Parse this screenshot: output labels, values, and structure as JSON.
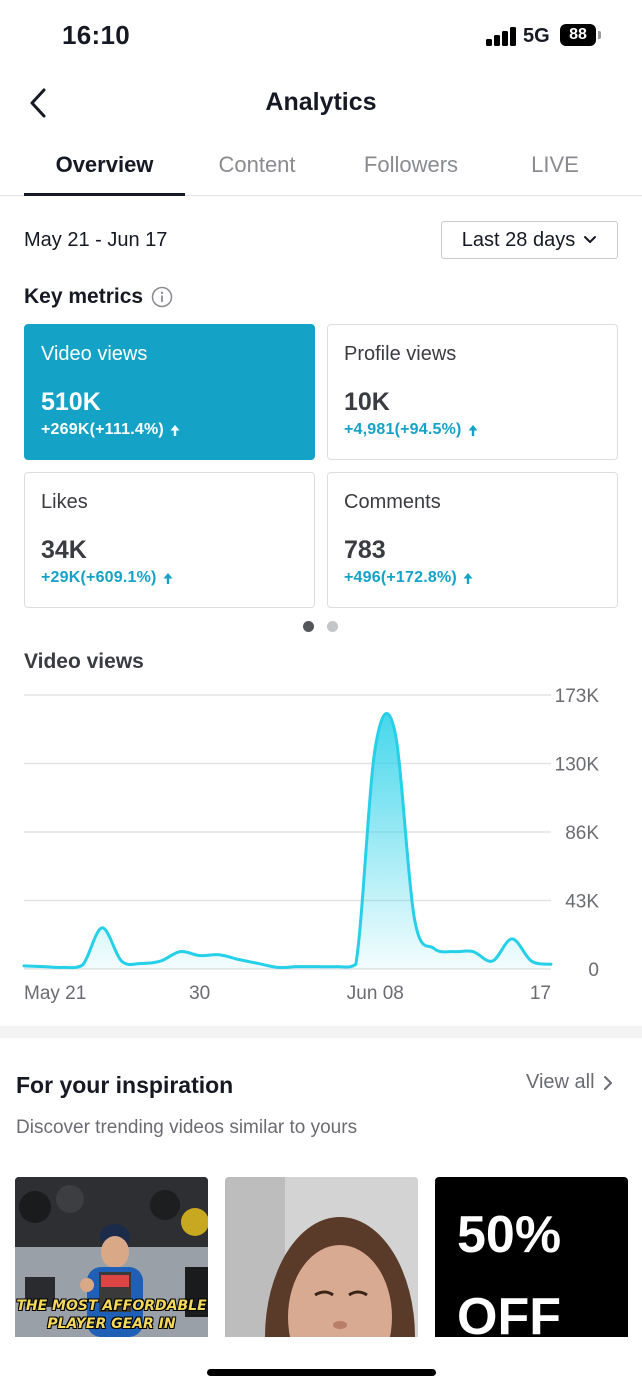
{
  "status_bar": {
    "time": "16:10",
    "network": "5G",
    "battery": "88"
  },
  "header": {
    "title": "Analytics",
    "back_icon": "chevron-left-icon"
  },
  "tabs": [
    {
      "label": "Overview",
      "active": true
    },
    {
      "label": "Content",
      "active": false
    },
    {
      "label": "Followers",
      "active": false
    },
    {
      "label": "LIVE",
      "active": false
    }
  ],
  "date_range": "May 21 - Jun 17",
  "period_select": {
    "value": "Last 28 days",
    "icon": "chevron-down-icon"
  },
  "key_metrics": {
    "title": "Key metrics",
    "info_icon": "info-icon",
    "cards": [
      {
        "label": "Video views",
        "value": "510K",
        "change": "+269K(+111.4%)",
        "selected": true
      },
      {
        "label": "Profile views",
        "value": "10K",
        "change": "+4,981(+94.5%)",
        "selected": false
      },
      {
        "label": "Likes",
        "value": "34K",
        "change": "+29K(+609.1%)",
        "selected": false
      },
      {
        "label": "Comments",
        "value": "783",
        "change": "+496(+172.8%)",
        "selected": false
      }
    ],
    "page_indicator": {
      "pages": 2,
      "current": 1
    }
  },
  "chart_section": {
    "title": "Video views"
  },
  "chart_data": {
    "type": "area",
    "title": "Video views",
    "x_ticks": [
      "May 21",
      "30",
      "Jun 08",
      "17"
    ],
    "y_ticks": [
      "173K",
      "130K",
      "86K",
      "43K",
      "0"
    ],
    "ylim": [
      0,
      173000
    ],
    "grid": true,
    "x": [
      "May 21",
      "May 22",
      "May 23",
      "May 24",
      "May 25",
      "May 26",
      "May 27",
      "May 28",
      "May 29",
      "May 30",
      "May 31",
      "Jun 01",
      "Jun 02",
      "Jun 03",
      "Jun 04",
      "Jun 05",
      "Jun 06",
      "Jun 07",
      "Jun 08",
      "Jun 09",
      "Jun 10",
      "Jun 11",
      "Jun 12",
      "Jun 13",
      "Jun 14",
      "Jun 15",
      "Jun 16",
      "Jun 17"
    ],
    "values": [
      2000,
      1500,
      1000,
      2500,
      26000,
      5000,
      3500,
      5000,
      11000,
      8500,
      9000,
      6000,
      3500,
      1000,
      1500,
      1500,
      1500,
      3000,
      140000,
      150000,
      32000,
      13000,
      11000,
      11000,
      5000,
      19000,
      5000,
      3000
    ],
    "color": "#25d0e8"
  },
  "inspiration": {
    "title": "For your inspiration",
    "view_all": "View all",
    "subtitle": "Discover trending videos similar to yours",
    "thumbnails": [
      {
        "caption_line1": "THE MOST AFFORDABLE",
        "caption_line2": "PLAYER GEAR IN"
      },
      {
        "caption_line1": "",
        "caption_line2": ""
      },
      {
        "caption_line1": "50%",
        "caption_line2": "OFF"
      }
    ]
  },
  "colors": {
    "accent": "#14a3c7",
    "chart_line": "#25d0e8",
    "text": "#161823",
    "muted": "#8a8b91"
  }
}
